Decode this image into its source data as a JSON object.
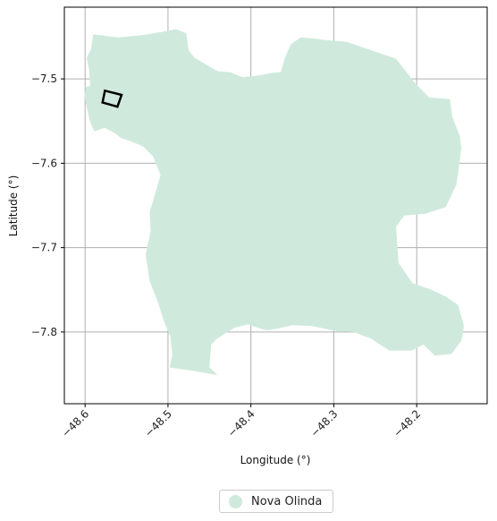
{
  "chart_data": {
    "type": "map",
    "region_name": "Nova Olinda",
    "xlabel": "Longitude (°)",
    "ylabel": "Latitude (°)",
    "xlim": [
      -48.625,
      -48.115
    ],
    "ylim": [
      -7.885,
      -7.415
    ],
    "xticks": [
      {
        "value": -48.6,
        "label": "−48.6"
      },
      {
        "value": -48.5,
        "label": "−48.5"
      },
      {
        "value": -48.4,
        "label": "−48.4"
      },
      {
        "value": -48.3,
        "label": "−48.3"
      },
      {
        "value": -48.2,
        "label": "−48.2"
      }
    ],
    "yticks": [
      {
        "value": -7.5,
        "label": "−7.5"
      },
      {
        "value": -7.6,
        "label": "−7.6"
      },
      {
        "value": -7.7,
        "label": "−7.7"
      },
      {
        "value": -7.8,
        "label": "−7.8"
      }
    ],
    "grid": true,
    "legend_placement": "bottom-center",
    "fill_color": "#cfeadc",
    "grid_color": "#b0b0b0",
    "boundary": [
      [
        -48.59,
        -7.447
      ],
      [
        -48.56,
        -7.451
      ],
      [
        -48.53,
        -7.448
      ],
      [
        -48.505,
        -7.444
      ],
      [
        -48.49,
        -7.441
      ],
      [
        -48.478,
        -7.446
      ],
      [
        -48.475,
        -7.466
      ],
      [
        -48.468,
        -7.475
      ],
      [
        -48.454,
        -7.483
      ],
      [
        -48.44,
        -7.491
      ],
      [
        -48.425,
        -7.492
      ],
      [
        -48.41,
        -7.498
      ],
      [
        -48.39,
        -7.496
      ],
      [
        -48.375,
        -7.493
      ],
      [
        -48.364,
        -7.492
      ],
      [
        -48.359,
        -7.475
      ],
      [
        -48.352,
        -7.459
      ],
      [
        -48.34,
        -7.451
      ],
      [
        -48.325,
        -7.452
      ],
      [
        -48.31,
        -7.454
      ],
      [
        -48.285,
        -7.456
      ],
      [
        -48.255,
        -7.466
      ],
      [
        -48.225,
        -7.476
      ],
      [
        -48.202,
        -7.505
      ],
      [
        -48.185,
        -7.522
      ],
      [
        -48.16,
        -7.524
      ],
      [
        -48.157,
        -7.545
      ],
      [
        -48.148,
        -7.568
      ],
      [
        -48.146,
        -7.582
      ],
      [
        -48.152,
        -7.625
      ],
      [
        -48.165,
        -7.652
      ],
      [
        -48.19,
        -7.66
      ],
      [
        -48.215,
        -7.662
      ],
      [
        -48.225,
        -7.675
      ],
      [
        -48.222,
        -7.718
      ],
      [
        -48.205,
        -7.742
      ],
      [
        -48.182,
        -7.75
      ],
      [
        -48.165,
        -7.758
      ],
      [
        -48.15,
        -7.768
      ],
      [
        -48.143,
        -7.793
      ],
      [
        -48.146,
        -7.81
      ],
      [
        -48.158,
        -7.826
      ],
      [
        -48.178,
        -7.828
      ],
      [
        -48.192,
        -7.815
      ],
      [
        -48.206,
        -7.822
      ],
      [
        -48.233,
        -7.822
      ],
      [
        -48.255,
        -7.808
      ],
      [
        -48.276,
        -7.8
      ],
      [
        -48.297,
        -7.799
      ],
      [
        -48.326,
        -7.793
      ],
      [
        -48.35,
        -7.792
      ],
      [
        -48.368,
        -7.796
      ],
      [
        -48.382,
        -7.798
      ],
      [
        -48.404,
        -7.791
      ],
      [
        -48.42,
        -7.795
      ],
      [
        -48.441,
        -7.808
      ],
      [
        -48.448,
        -7.815
      ],
      [
        -48.45,
        -7.842
      ],
      [
        -48.44,
        -7.851
      ],
      [
        -48.47,
        -7.846
      ],
      [
        -48.498,
        -7.842
      ],
      [
        -48.495,
        -7.827
      ],
      [
        -48.497,
        -7.806
      ],
      [
        -48.505,
        -7.787
      ],
      [
        -48.512,
        -7.765
      ],
      [
        -48.522,
        -7.74
      ],
      [
        -48.527,
        -7.708
      ],
      [
        -48.521,
        -7.68
      ],
      [
        -48.522,
        -7.657
      ],
      [
        -48.518,
        -7.645
      ],
      [
        -48.509,
        -7.614
      ],
      [
        -48.518,
        -7.592
      ],
      [
        -48.53,
        -7.58
      ],
      [
        -48.545,
        -7.574
      ],
      [
        -48.557,
        -7.57
      ],
      [
        -48.563,
        -7.565
      ],
      [
        -48.576,
        -7.558
      ],
      [
        -48.589,
        -7.562
      ],
      [
        -48.594,
        -7.551
      ],
      [
        -48.598,
        -7.534
      ],
      [
        -48.601,
        -7.52
      ],
      [
        -48.599,
        -7.51
      ],
      [
        -48.594,
        -7.508
      ],
      [
        -48.595,
        -7.49
      ],
      [
        -48.598,
        -7.475
      ],
      [
        -48.593,
        -7.465
      ]
    ],
    "marker": {
      "shape": "square",
      "corners": [
        [
          -48.576,
          -7.514
        ],
        [
          -48.556,
          -7.519
        ],
        [
          -48.561,
          -7.533
        ],
        [
          -48.579,
          -7.528
        ]
      ],
      "color": "#000000"
    }
  },
  "legend": {
    "label": "Nova Olinda",
    "color": "#cfeadc"
  }
}
